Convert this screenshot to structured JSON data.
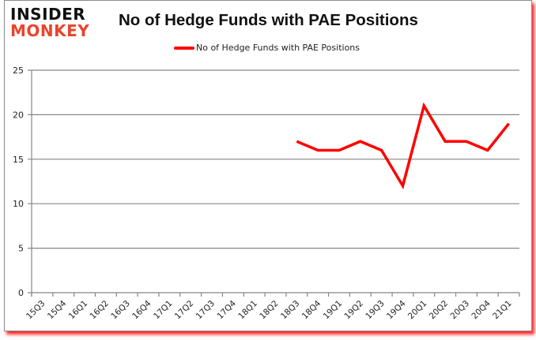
{
  "logo": {
    "line1": "INSIDER",
    "line2": "MONKEY"
  },
  "colors": {
    "series": "#ff0000",
    "grid": "#868686",
    "logo_accent": "#e8452c",
    "frame_shadow": "#ff0000"
  },
  "chart_data": {
    "type": "line",
    "title": "No of Hedge Funds with PAE Positions",
    "xlabel": "",
    "ylabel": "",
    "ylim": [
      0,
      25
    ],
    "yticks": [
      0,
      5,
      10,
      15,
      20,
      25
    ],
    "grid": true,
    "legend_position": "top",
    "categories": [
      "15Q3",
      "15Q4",
      "16Q1",
      "16Q2",
      "16Q3",
      "16Q4",
      "17Q1",
      "17Q2",
      "17Q3",
      "17Q4",
      "18Q1",
      "18Q2",
      "18Q3",
      "18Q4",
      "19Q1",
      "19Q2",
      "19Q3",
      "19Q4",
      "20Q1",
      "20Q2",
      "20Q3",
      "20Q4",
      "21Q1"
    ],
    "series": [
      {
        "name": "No of Hedge Funds with PAE Positions",
        "color": "#ff0000",
        "values": [
          null,
          null,
          null,
          null,
          null,
          null,
          null,
          null,
          null,
          null,
          null,
          null,
          17,
          16,
          16,
          17,
          16,
          12,
          21,
          17,
          17,
          16,
          19
        ]
      }
    ]
  }
}
